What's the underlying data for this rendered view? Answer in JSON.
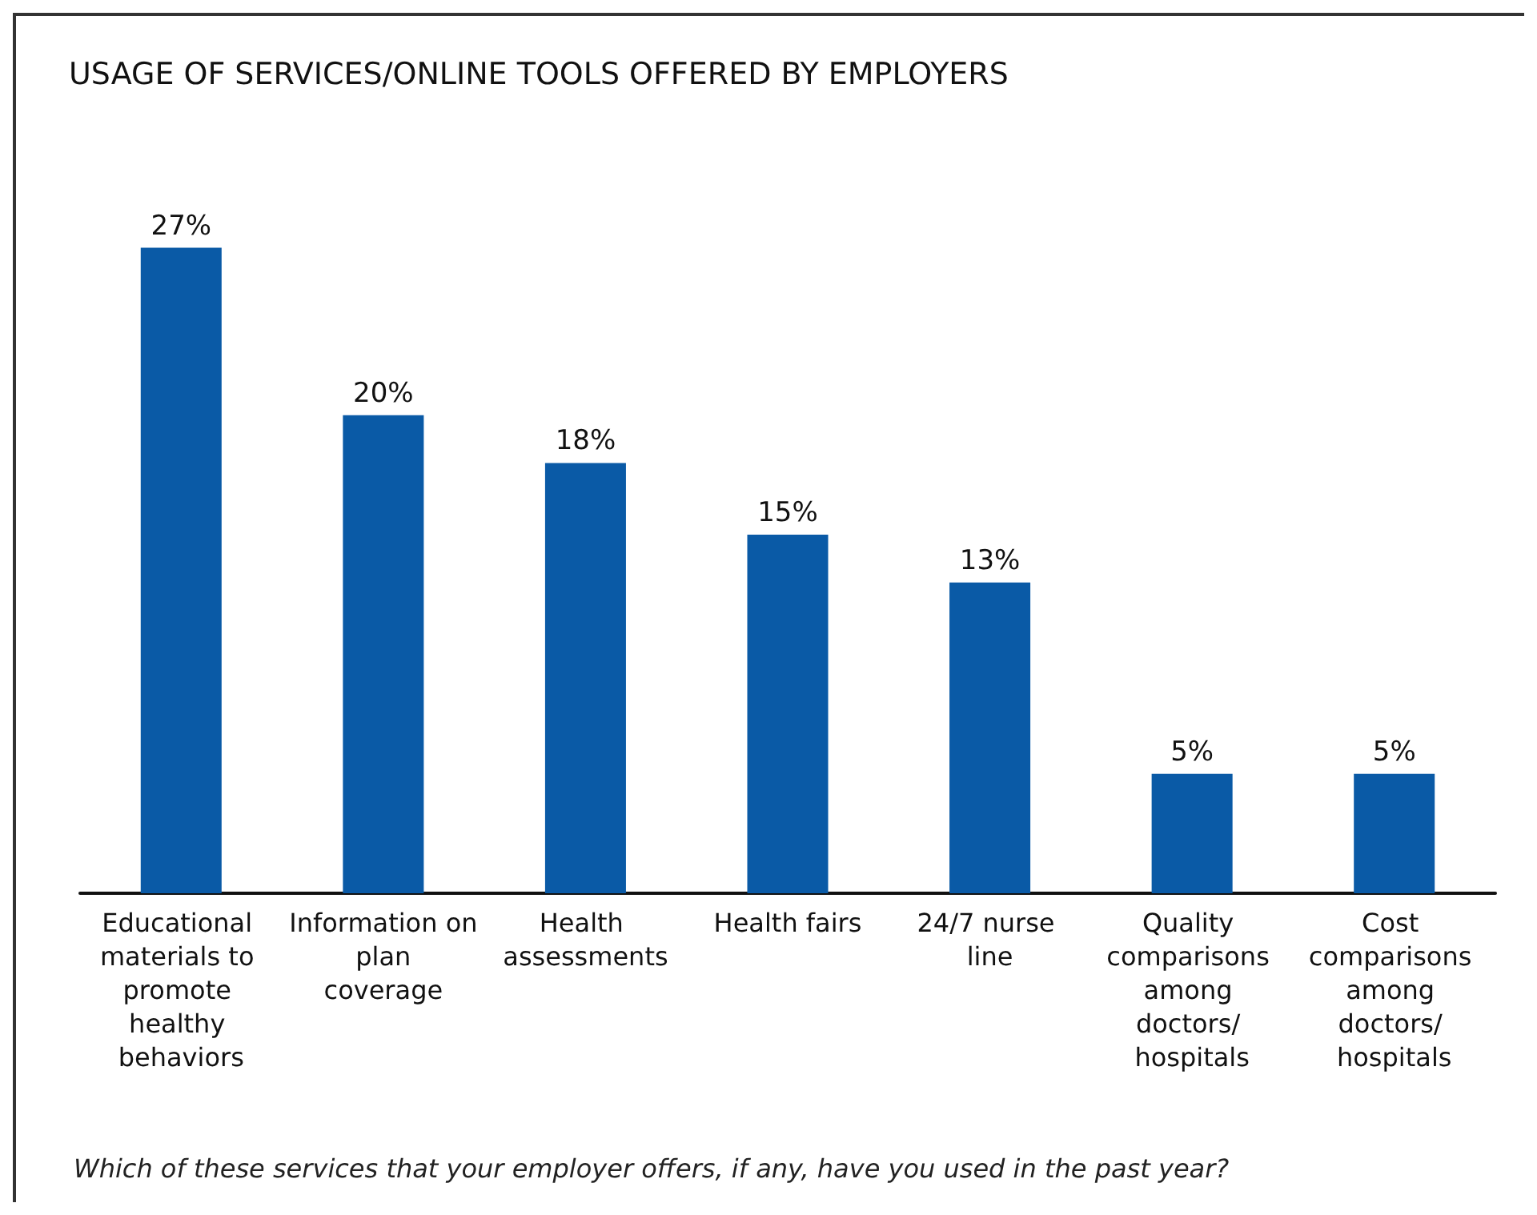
{
  "chart_data": {
    "type": "bar",
    "title": "USAGE OF SERVICES/ONLINE TOOLS OFFERED BY EMPLOYERS",
    "categories": [
      "Educational materials to promote healthy behaviors",
      "Information on plan coverage",
      "Health assessments",
      "Health fairs",
      "24/7 nurse line",
      "Quality comparisons among doctors/ hospitals",
      "Cost comparisons among doctors/ hospitals"
    ],
    "values": [
      27,
      20,
      18,
      15,
      13,
      5,
      5
    ],
    "value_labels": [
      "27%",
      "20%",
      "18%",
      "15%",
      "13%",
      "5%",
      "5%"
    ],
    "color": "#0a5aa6",
    "grid": false,
    "annotations": [
      "Which of these services that your employer offers, if any, have you used in the past year?"
    ]
  }
}
